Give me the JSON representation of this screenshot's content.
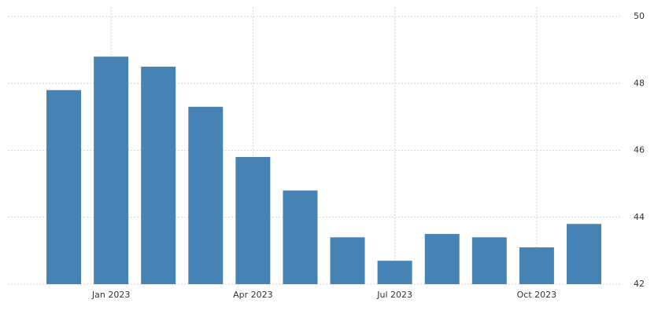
{
  "chart_data": {
    "type": "bar",
    "categories": [
      null,
      "Jan 2023",
      null,
      null,
      "Apr 2023",
      null,
      null,
      "Jul 2023",
      null,
      null,
      "Oct 2023",
      null
    ],
    "values": [
      47.8,
      48.8,
      48.5,
      47.3,
      45.8,
      44.8,
      43.4,
      42.7,
      43.5,
      43.4,
      43.1,
      43.8
    ],
    "color": "#4682b4",
    "ylim": [
      42,
      50
    ],
    "yticks": [
      42,
      44,
      46,
      48,
      50
    ],
    "grid": true
  }
}
